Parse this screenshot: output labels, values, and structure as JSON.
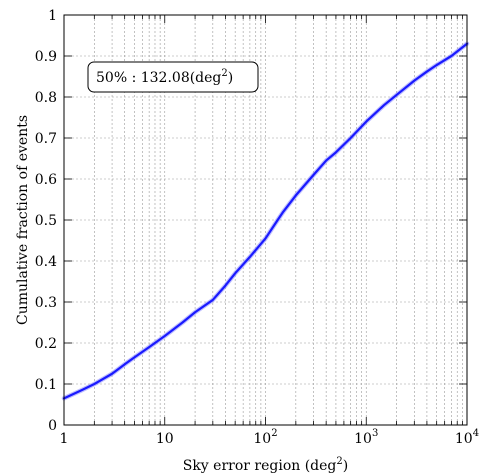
{
  "chart_data": {
    "type": "line",
    "title": "",
    "xlabel": "Sky error region (deg",
    "xlabel_sup": "2",
    "xlabel_end": ")",
    "ylabel": "Cumulative fraction of events",
    "xscale": "log",
    "xlim": [
      1,
      10000
    ],
    "ylim": [
      0,
      1
    ],
    "grid": true,
    "x_ticks": [
      {
        "value": 1,
        "base": "1",
        "exp": ""
      },
      {
        "value": 10,
        "base": "10",
        "exp": ""
      },
      {
        "value": 100,
        "base": "10",
        "exp": "2"
      },
      {
        "value": 1000,
        "base": "10",
        "exp": "3"
      },
      {
        "value": 10000,
        "base": "10",
        "exp": "4"
      }
    ],
    "y_ticks": [
      {
        "value": 0,
        "label": "0"
      },
      {
        "value": 0.1,
        "label": "0.1"
      },
      {
        "value": 0.2,
        "label": "0.2"
      },
      {
        "value": 0.3,
        "label": "0.3"
      },
      {
        "value": 0.4,
        "label": "0.4"
      },
      {
        "value": 0.5,
        "label": "0.5"
      },
      {
        "value": 0.6,
        "label": "0.6"
      },
      {
        "value": 0.7,
        "label": "0.7"
      },
      {
        "value": 0.8,
        "label": "0.8"
      },
      {
        "value": 0.9,
        "label": "0.9"
      },
      {
        "value": 1,
        "label": "1"
      }
    ],
    "annotation": {
      "prefix": "50% : 132.08(deg",
      "sup": "2",
      "suffix": ")",
      "placement": "top-left"
    },
    "series": [
      {
        "color": "#1a1aff",
        "x": [
          1,
          1.5,
          2,
          3,
          4,
          5,
          7,
          10,
          15,
          20,
          30,
          40,
          50,
          70,
          100,
          132.08,
          150,
          200,
          300,
          400,
          500,
          700,
          1000,
          1500,
          2000,
          3000,
          4000,
          5000,
          7000,
          10000
        ],
        "y": [
          0.065,
          0.085,
          0.1,
          0.125,
          0.148,
          0.165,
          0.19,
          0.217,
          0.25,
          0.275,
          0.305,
          0.34,
          0.37,
          0.41,
          0.455,
          0.5,
          0.52,
          0.56,
          0.61,
          0.645,
          0.665,
          0.7,
          0.74,
          0.78,
          0.805,
          0.84,
          0.862,
          0.878,
          0.9,
          0.93
        ]
      }
    ]
  }
}
